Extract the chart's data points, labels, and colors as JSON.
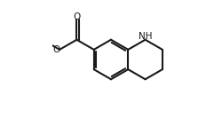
{
  "bg_color": "#ffffff",
  "line_color": "#1a1a1a",
  "lw": 1.5,
  "figsize": [
    2.5,
    1.34
  ],
  "dpi": 100,
  "bx": 0.5,
  "by": 0.5,
  "r": 0.168,
  "NH_label": "NH",
  "O_label": "O",
  "font_size": 7.5
}
